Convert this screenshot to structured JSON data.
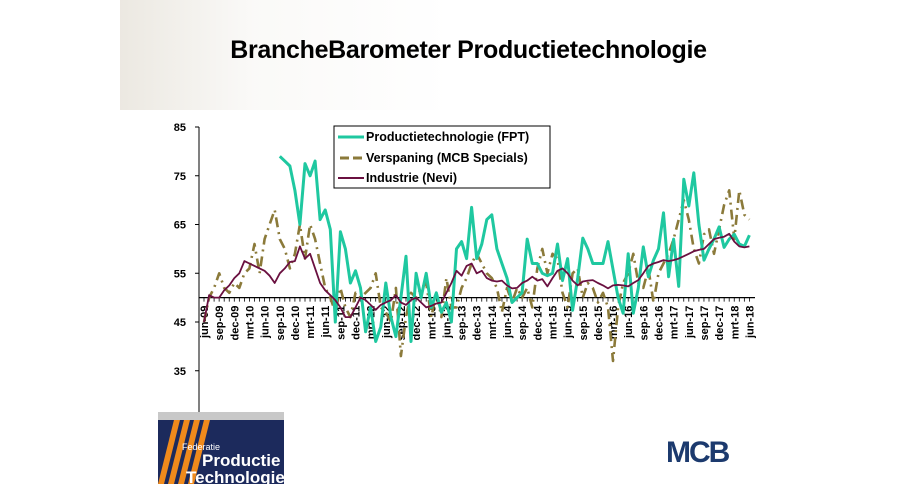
{
  "title": "BrancheBarometer Productietechnologie",
  "logos": {
    "left": "Federatie Productie Technologie",
    "left_lines": [
      "Federatie",
      "Productie",
      "Technologie"
    ],
    "right": "MCB"
  },
  "colors": {
    "fpt": "#1fc8a0",
    "mcb": "#8b7a3a",
    "nevi": "#6a1040",
    "mcb_logo": "#1c3a6e",
    "fpt_logo_bg": "#1c2a5c",
    "fpt_logo_stripe": "#f08a1c"
  },
  "chart_data": {
    "type": "line",
    "title": "BrancheBarometer Productietechnologie",
    "xlabel": "",
    "ylabel": "",
    "ylim": [
      25,
      85
    ],
    "x_axis_crosses_at": 50,
    "grid": false,
    "legend_position": "top-center",
    "yticks": [
      "85",
      "75",
      "65",
      "55",
      "45",
      "35",
      "25"
    ],
    "xticks": [
      "jun-09",
      "sep-09",
      "dec-09",
      "mrt-10",
      "jun-10",
      "sep-10",
      "dec-10",
      "mrt-11",
      "jun-11",
      "sep-11",
      "dec-11",
      "mrt-12",
      "jun-12",
      "sep-12",
      "dec-12",
      "mrt-13",
      "jun-13",
      "sep-13",
      "dec-13",
      "mrt-14",
      "jun-14",
      "sep-14",
      "dec-14",
      "mrt-15",
      "jun-15",
      "sep-15",
      "dec-15",
      "mrt-16",
      "jun-16",
      "sep-16",
      "dec-16",
      "mrt-17",
      "jun-17",
      "sep-17",
      "dec-17",
      "mrt-18",
      "jun-18"
    ],
    "x_start": "jun-09",
    "x_end": "jun-18",
    "x_frequency": "monthly",
    "series": [
      {
        "name": "Productietechnologie (FPT)",
        "style": "solid",
        "values": [
          null,
          null,
          null,
          null,
          null,
          null,
          null,
          null,
          null,
          null,
          null,
          null,
          null,
          null,
          null,
          79,
          78,
          77,
          72,
          65,
          77.5,
          75,
          78,
          66,
          68,
          64,
          45,
          63.5,
          60,
          53,
          55.5,
          52,
          43,
          48,
          41,
          44,
          53,
          46,
          42,
          50,
          58.5,
          41,
          55,
          50,
          55,
          48,
          51,
          47,
          49,
          45,
          60,
          61.5,
          58,
          68.5,
          58,
          61,
          66,
          67,
          60,
          57,
          54,
          49,
          50,
          51,
          62,
          57,
          57,
          55,
          54.5,
          55,
          61,
          53.5,
          58,
          47.4,
          54,
          62.2,
          60,
          57,
          57,
          57,
          61.5,
          55.8,
          50,
          46.8,
          59,
          46.8,
          52,
          60.4,
          54.3,
          57.7,
          60,
          67.4,
          54.3,
          62,
          52.3,
          74.3,
          68.8,
          75.6,
          65,
          57.7,
          60,
          62,
          64.5,
          60.3,
          62,
          63,
          61,
          60.5,
          62.8
        ]
      },
      {
        "name": "Verspaning (MCB Specials)",
        "style": "dash-dot",
        "values": [
          45,
          50,
          52,
          55,
          52,
          51,
          53,
          52,
          55,
          56,
          61,
          55,
          62,
          65,
          68,
          62,
          60,
          56,
          59,
          65,
          58,
          65,
          62,
          57,
          52,
          50,
          47,
          52,
          48,
          46,
          51,
          50,
          51,
          52,
          55,
          48,
          47,
          45,
          52,
          38,
          46,
          51,
          50,
          52,
          53,
          46,
          51,
          46,
          54,
          48,
          48,
          52,
          54,
          57,
          59,
          57,
          55,
          54,
          52,
          47,
          52,
          49,
          52,
          50,
          52,
          48,
          56,
          60,
          55,
          59,
          58,
          51,
          48,
          55,
          56,
          50,
          53,
          52,
          49,
          51,
          48,
          37,
          48,
          53,
          55,
          59,
          53,
          52,
          56,
          49,
          55,
          57,
          59,
          62,
          66,
          70,
          66,
          60,
          57,
          63,
          64,
          59,
          64,
          69,
          72,
          62,
          72,
          67,
          66
        ]
      },
      {
        "name": "Industrie (Nevi)",
        "style": "solid",
        "values": [
          45,
          50.5,
          50,
          50,
          51.5,
          52.5,
          54,
          55,
          57.5,
          57,
          56.5,
          56,
          55.5,
          54.5,
          53,
          55,
          56,
          57.3,
          57.5,
          60.5,
          58,
          59,
          56,
          53,
          51.5,
          50.5,
          49.5,
          48,
          46,
          46,
          48,
          50,
          49.5,
          48.5,
          47.5,
          48.5,
          49,
          49.5,
          50.5,
          49,
          48.5,
          49.5,
          50,
          49,
          48,
          48.3,
          48.8,
          49,
          51,
          53,
          55.5,
          54.5,
          56.5,
          57,
          55,
          55.5,
          54,
          53.5,
          53.3,
          53.5,
          52.5,
          51.9,
          52,
          53,
          53.5,
          54.3,
          53.5,
          53.8,
          52.3,
          54,
          55.5,
          56,
          55,
          53.5,
          52.5,
          53.3,
          53.5,
          53.6,
          53,
          52.5,
          51.9,
          52.5,
          52.6,
          52.5,
          52.3,
          53,
          53.6,
          55,
          56.5,
          57,
          57.3,
          57.7,
          57.5,
          57.7,
          58,
          58.5,
          59,
          59.5,
          59.8,
          60,
          61,
          62,
          62.3,
          62.5,
          63.1,
          61.5,
          60.5,
          60.3,
          60.5
        ]
      }
    ]
  }
}
